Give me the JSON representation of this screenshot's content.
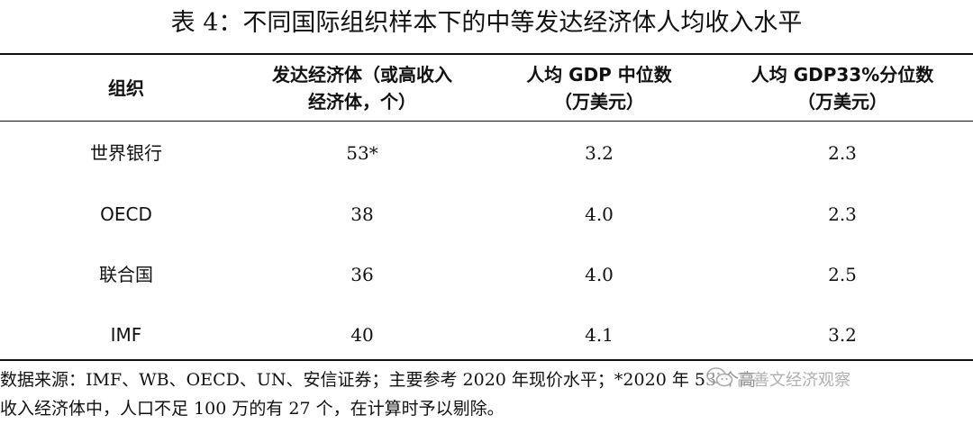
{
  "table": {
    "title": "表 4：不同国际组织样本下的中等发达经济体人均收入水平",
    "headers": [
      [
        "组织"
      ],
      [
        "发达经济体（或高收入",
        "经济体，个）"
      ],
      [
        "人均 GDP 中位数",
        "（万美元）"
      ],
      [
        "人均 GDP33%分位数",
        "（万美元）"
      ]
    ],
    "rows": [
      {
        "org": "世界银行",
        "count": "53*",
        "median": "3.2",
        "p33": "2.3"
      },
      {
        "org": "OECD",
        "count": "38",
        "median": "4.0",
        "p33": "2.3"
      },
      {
        "org": "联合国",
        "count": "36",
        "median": "4.0",
        "p33": "2.5"
      },
      {
        "org": "IMF",
        "count": "40",
        "median": "4.1",
        "p33": "3.2"
      }
    ],
    "note": {
      "line1": "数据来源：IMF、WB、OECD、UN、安信证券；主要参考 2020 年现价水平；*2020 年 53 个高",
      "line2": "收入经济体中，人口不足 100 万的有 27 个，在计算时予以剔除。"
    }
  },
  "watermark": {
    "text": "高善文经济观察",
    "icon": "wechat-icon"
  }
}
